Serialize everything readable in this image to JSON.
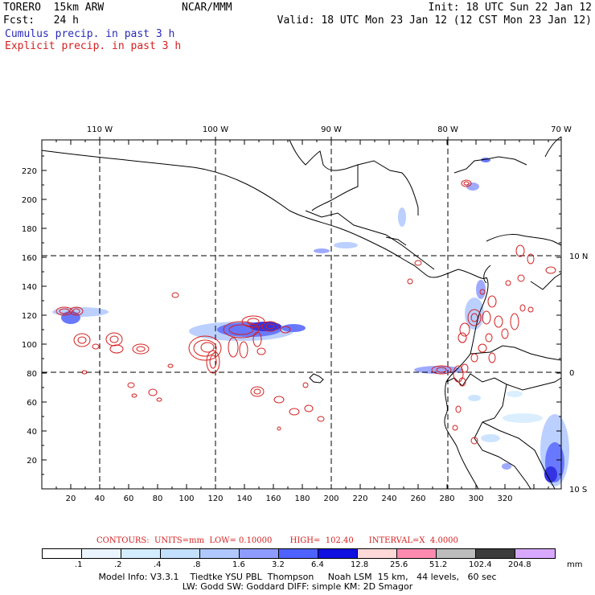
{
  "header": {
    "model": "TORERO  15km ARW",
    "org": "NCAR/MMM",
    "init": "Init: 18 UTC Sun 22 Jan 12",
    "fcst": "Fcst:   24 h",
    "valid": "Valid: 18 UTC Mon 23 Jan 12 (12 CST Mon 23 Jan 12)",
    "cumulus_label": "Cumulus precip. in past 3 h",
    "explicit_label": "Explicit precip. in past 3 h"
  },
  "map": {
    "lon_labels": [
      "110 W",
      "100 W",
      "90 W",
      "80 W",
      "70 W"
    ],
    "lat_labels": [
      "10 N",
      "0",
      "10 S"
    ],
    "x_ticks": [
      "20",
      "40",
      "60",
      "80",
      "100",
      "120",
      "140",
      "160",
      "180",
      "200",
      "220",
      "240",
      "260",
      "280",
      "300",
      "320"
    ],
    "y_ticks": [
      "20",
      "40",
      "60",
      "80",
      "100",
      "120",
      "140",
      "160",
      "180",
      "200",
      "220"
    ]
  },
  "legend": {
    "contours_text": "CONTOURS:  UNITS=mm  LOW= 0.10000       HIGH=  102.40      INTERVAL=X  4.0000",
    "values": [
      ".1",
      ".2",
      ".4",
      ".8",
      "1.6",
      "3.2",
      "6.4",
      "12.8",
      "25.6",
      "51.2",
      "102.4",
      "204.8"
    ],
    "unit": "mm",
    "colors": [
      "#ffffff",
      "#eaf4ff",
      "#d4ecff",
      "#c4e0ff",
      "#b0c8ff",
      "#8e9cff",
      "#4e62ff",
      "#1010e0",
      "#ffd8d8",
      "#ff8ab0",
      "#bcbcbc",
      "#3c3c3c",
      "#d8a8ff"
    ]
  },
  "footer": {
    "line1": "Model Info: V3.3.1    Tiedtke YSU PBL  Thompson     Noah LSM  15 km,   44 levels,   60 sec",
    "line2": "LW: Godd SW: Goddard DIFF: simple KM: 2D Smagor"
  }
}
